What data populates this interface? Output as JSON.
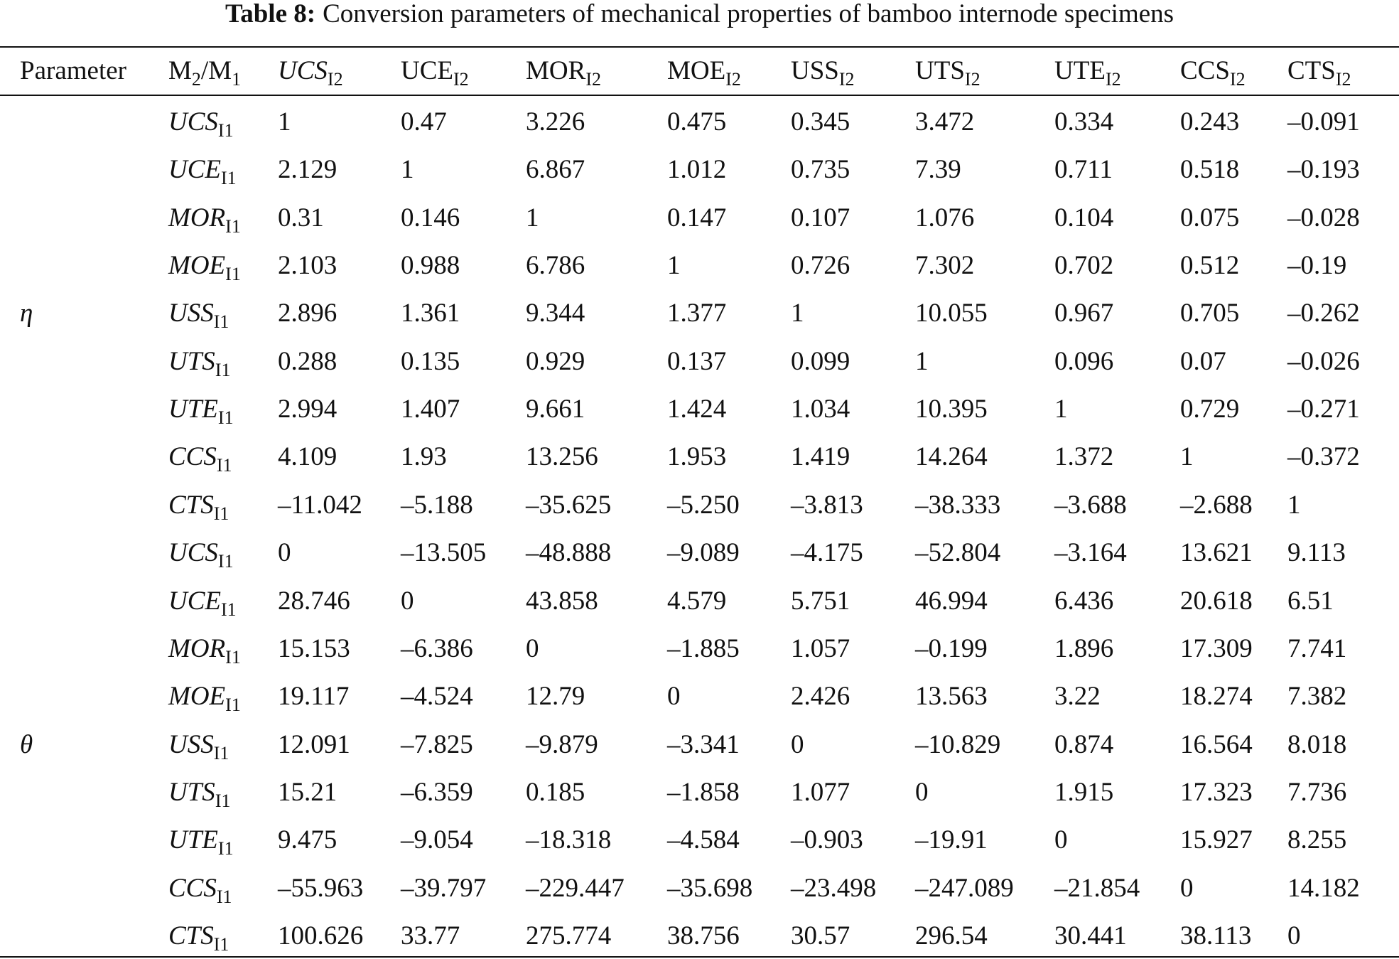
{
  "title": {
    "label": "Table 8:",
    "text": "Conversion parameters of mechanical properties of bamboo internode specimens"
  },
  "table": {
    "header": [
      [
        {
          "text": "Parameter",
          "style": "normal"
        }
      ],
      [
        {
          "text": "M",
          "style": "normal"
        },
        {
          "text": "2",
          "style": "sub"
        },
        {
          "text": "/M",
          "style": "normal"
        },
        {
          "text": "1",
          "style": "sub"
        }
      ],
      [
        {
          "text": "UCS",
          "style": "italic"
        },
        {
          "text": "I2",
          "style": "sub"
        }
      ],
      [
        {
          "text": "UCE",
          "style": "normal"
        },
        {
          "text": "I2",
          "style": "sub"
        }
      ],
      [
        {
          "text": "MOR",
          "style": "normal"
        },
        {
          "text": "I2",
          "style": "sub"
        }
      ],
      [
        {
          "text": "MOE",
          "style": "normal"
        },
        {
          "text": "I2",
          "style": "sub"
        }
      ],
      [
        {
          "text": "USS",
          "style": "normal"
        },
        {
          "text": "I2",
          "style": "sub"
        }
      ],
      [
        {
          "text": "UTS",
          "style": "normal"
        },
        {
          "text": "I2",
          "style": "sub"
        }
      ],
      [
        {
          "text": "UTE",
          "style": "normal"
        },
        {
          "text": "I2",
          "style": "sub"
        }
      ],
      [
        {
          "text": "CCS",
          "style": "normal"
        },
        {
          "text": "I2",
          "style": "sub"
        }
      ],
      [
        {
          "text": "CTS",
          "style": "normal"
        },
        {
          "text": "I2",
          "style": "sub"
        }
      ]
    ],
    "groups": [
      {
        "label": "η",
        "rows": [
          {
            "name": [
              {
                "text": "UCS",
                "style": "italic"
              },
              {
                "text": "I1",
                "style": "sub"
              }
            ],
            "values": [
              "1",
              "0.47",
              "3.226",
              "0.475",
              "0.345",
              "3.472",
              "0.334",
              "0.243",
              "–0.091"
            ]
          },
          {
            "name": [
              {
                "text": "UCE",
                "style": "italic"
              },
              {
                "text": "I1",
                "style": "sub"
              }
            ],
            "values": [
              "2.129",
              "1",
              "6.867",
              "1.012",
              "0.735",
              "7.39",
              "0.711",
              "0.518",
              "–0.193"
            ]
          },
          {
            "name": [
              {
                "text": "MOR",
                "style": "italic"
              },
              {
                "text": "I1",
                "style": "sub"
              }
            ],
            "values": [
              "0.31",
              "0.146",
              "1",
              "0.147",
              "0.107",
              "1.076",
              "0.104",
              "0.075",
              "–0.028"
            ]
          },
          {
            "name": [
              {
                "text": "MOE",
                "style": "italic"
              },
              {
                "text": "I1",
                "style": "sub"
              }
            ],
            "values": [
              "2.103",
              "0.988",
              "6.786",
              "1",
              "0.726",
              "7.302",
              "0.702",
              "0.512",
              "–0.19"
            ]
          },
          {
            "name": [
              {
                "text": "USS",
                "style": "italic"
              },
              {
                "text": "I1",
                "style": "sub"
              }
            ],
            "values": [
              "2.896",
              "1.361",
              "9.344",
              "1.377",
              "1",
              "10.055",
              "0.967",
              "0.705",
              "–0.262"
            ]
          },
          {
            "name": [
              {
                "text": "UTS",
                "style": "italic"
              },
              {
                "text": "I1",
                "style": "sub"
              }
            ],
            "values": [
              "0.288",
              "0.135",
              "0.929",
              "0.137",
              "0.099",
              "1",
              "0.096",
              "0.07",
              "–0.026"
            ]
          },
          {
            "name": [
              {
                "text": "UTE",
                "style": "italic"
              },
              {
                "text": "I1",
                "style": "sub"
              }
            ],
            "values": [
              "2.994",
              "1.407",
              "9.661",
              "1.424",
              "1.034",
              "10.395",
              "1",
              "0.729",
              "–0.271"
            ]
          },
          {
            "name": [
              {
                "text": "CCS",
                "style": "italic"
              },
              {
                "text": "I1",
                "style": "sub"
              }
            ],
            "values": [
              "4.109",
              "1.93",
              "13.256",
              "1.953",
              "1.419",
              "14.264",
              "1.372",
              "1",
              "–0.372"
            ]
          },
          {
            "name": [
              {
                "text": "CTS",
                "style": "italic"
              },
              {
                "text": "I1",
                "style": "sub"
              }
            ],
            "values": [
              "–11.042",
              "–5.188",
              "–35.625",
              "–5.250",
              "–3.813",
              "–38.333",
              "–3.688",
              "–2.688",
              "1"
            ]
          }
        ]
      },
      {
        "label": "θ",
        "rows": [
          {
            "name": [
              {
                "text": "UCS",
                "style": "italic"
              },
              {
                "text": "I1",
                "style": "sub"
              }
            ],
            "values": [
              "0",
              "–13.505",
              "–48.888",
              "–9.089",
              "–4.175",
              "–52.804",
              "–3.164",
              "13.621",
              "9.113"
            ]
          },
          {
            "name": [
              {
                "text": "UCE",
                "style": "italic"
              },
              {
                "text": "I1",
                "style": "sub"
              }
            ],
            "values": [
              "28.746",
              "0",
              "43.858",
              "4.579",
              "5.751",
              "46.994",
              "6.436",
              "20.618",
              "6.51"
            ]
          },
          {
            "name": [
              {
                "text": "MOR",
                "style": "italic"
              },
              {
                "text": "I1",
                "style": "sub"
              }
            ],
            "values": [
              "15.153",
              "–6.386",
              "0",
              "–1.885",
              "1.057",
              "–0.199",
              "1.896",
              "17.309",
              "7.741"
            ]
          },
          {
            "name": [
              {
                "text": "MOE",
                "style": "italic"
              },
              {
                "text": "I1",
                "style": "sub"
              }
            ],
            "values": [
              "19.117",
              "–4.524",
              "12.79",
              "0",
              "2.426",
              "13.563",
              "3.22",
              "18.274",
              "7.382"
            ]
          },
          {
            "name": [
              {
                "text": "USS",
                "style": "italic"
              },
              {
                "text": "I1",
                "style": "sub"
              }
            ],
            "values": [
              "12.091",
              "–7.825",
              "–9.879",
              "–3.341",
              "0",
              "–10.829",
              "0.874",
              "16.564",
              "8.018"
            ]
          },
          {
            "name": [
              {
                "text": "UTS",
                "style": "italic"
              },
              {
                "text": "I1",
                "style": "sub"
              }
            ],
            "values": [
              "15.21",
              "–6.359",
              "0.185",
              "–1.858",
              "1.077",
              "0",
              "1.915",
              "17.323",
              "7.736"
            ]
          },
          {
            "name": [
              {
                "text": "UTE",
                "style": "italic"
              },
              {
                "text": "I1",
                "style": "sub"
              }
            ],
            "values": [
              "9.475",
              "–9.054",
              "–18.318",
              "–4.584",
              "–0.903",
              "–19.91",
              "0",
              "15.927",
              "8.255"
            ]
          },
          {
            "name": [
              {
                "text": "CCS",
                "style": "italic"
              },
              {
                "text": "I1",
                "style": "sub"
              }
            ],
            "values": [
              "–55.963",
              "–39.797",
              "–229.447",
              "–35.698",
              "–23.498",
              "–247.089",
              "–21.854",
              "0",
              "14.182"
            ]
          },
          {
            "name": [
              {
                "text": "CTS",
                "style": "italic"
              },
              {
                "text": "I1",
                "style": "sub"
              }
            ],
            "values": [
              "100.626",
              "33.77",
              "275.774",
              "38.756",
              "30.57",
              "296.54",
              "30.441",
              "38.113",
              "0"
            ]
          }
        ]
      }
    ]
  }
}
